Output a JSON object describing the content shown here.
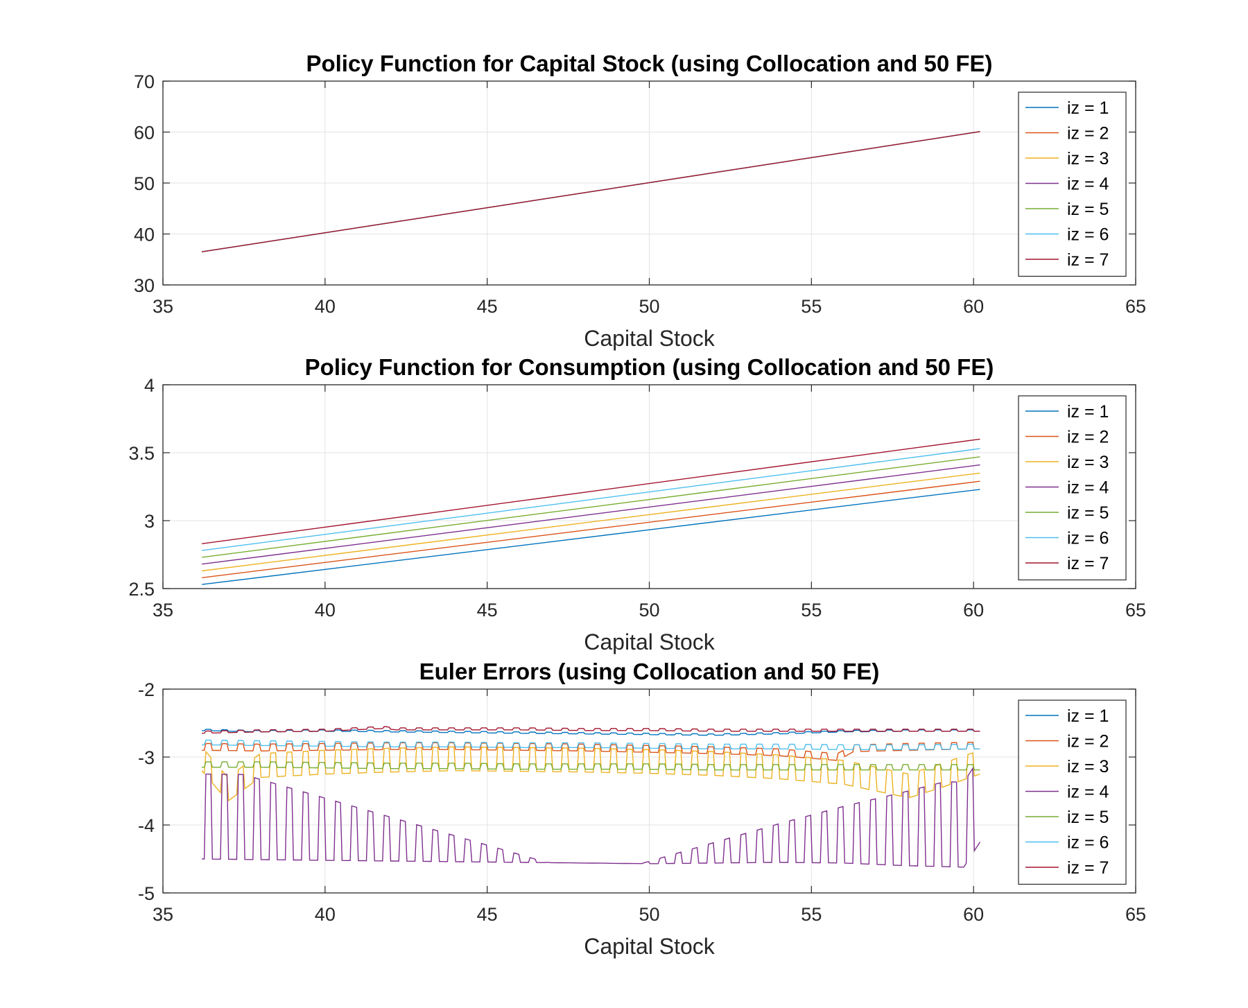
{
  "chart_data": [
    {
      "type": "line",
      "title": "Policy Function for Capital Stock (using Collocation and 50 FE)",
      "xlabel": "Capital Stock",
      "ylabel": "",
      "xlim": [
        35,
        65
      ],
      "ylim": [
        30,
        70
      ],
      "xticks": [
        35,
        40,
        45,
        50,
        55,
        60,
        65
      ],
      "yticks": [
        30,
        40,
        50,
        60,
        70
      ],
      "grid": true,
      "legend": "top-right",
      "series": [
        {
          "name": "iz = 1",
          "color": "#0072BD",
          "x": [
            36.2,
            60.2
          ],
          "y": [
            36.5,
            60.1
          ]
        },
        {
          "name": "iz = 2",
          "color": "#D95319",
          "x": [
            36.2,
            60.2
          ],
          "y": [
            36.5,
            60.1
          ]
        },
        {
          "name": "iz = 3",
          "color": "#EDB120",
          "x": [
            36.2,
            60.2
          ],
          "y": [
            36.5,
            60.1
          ]
        },
        {
          "name": "iz = 4",
          "color": "#7E2F8E",
          "x": [
            36.2,
            60.2
          ],
          "y": [
            36.5,
            60.1
          ]
        },
        {
          "name": "iz = 5",
          "color": "#77AC30",
          "x": [
            36.2,
            60.2
          ],
          "y": [
            36.5,
            60.1
          ]
        },
        {
          "name": "iz = 6",
          "color": "#4DBEEE",
          "x": [
            36.2,
            60.2
          ],
          "y": [
            36.5,
            60.1
          ]
        },
        {
          "name": "iz = 7",
          "color": "#A2142F",
          "x": [
            36.2,
            60.2
          ],
          "y": [
            36.5,
            60.1
          ]
        }
      ]
    },
    {
      "type": "line",
      "title": "Policy Function for Consumption (using Collocation and 50 FE)",
      "xlabel": "Capital Stock",
      "ylabel": "",
      "xlim": [
        35,
        65
      ],
      "ylim": [
        2.5,
        4
      ],
      "xticks": [
        35,
        40,
        45,
        50,
        55,
        60,
        65
      ],
      "yticks": [
        2.5,
        3,
        3.5,
        4
      ],
      "grid": true,
      "legend": "top-right",
      "series": [
        {
          "name": "iz = 1",
          "color": "#0072BD",
          "x": [
            36.2,
            60.2
          ],
          "y": [
            2.53,
            3.23
          ]
        },
        {
          "name": "iz = 2",
          "color": "#D95319",
          "x": [
            36.2,
            60.2
          ],
          "y": [
            2.58,
            3.29
          ]
        },
        {
          "name": "iz = 3",
          "color": "#EDB120",
          "x": [
            36.2,
            60.2
          ],
          "y": [
            2.63,
            3.35
          ]
        },
        {
          "name": "iz = 4",
          "color": "#7E2F8E",
          "x": [
            36.2,
            60.2
          ],
          "y": [
            2.68,
            3.41
          ]
        },
        {
          "name": "iz = 5",
          "color": "#77AC30",
          "x": [
            36.2,
            60.2
          ],
          "y": [
            2.73,
            3.47
          ]
        },
        {
          "name": "iz = 6",
          "color": "#4DBEEE",
          "x": [
            36.2,
            60.2
          ],
          "y": [
            2.78,
            3.53
          ]
        },
        {
          "name": "iz = 7",
          "color": "#A2142F",
          "x": [
            36.2,
            60.2
          ],
          "y": [
            2.83,
            3.6
          ]
        }
      ]
    },
    {
      "type": "line",
      "title": "Euler Errors (using Collocation and 50 FE)",
      "xlabel": "Capital Stock",
      "ylabel": "",
      "xlim": [
        35,
        65
      ],
      "ylim": [
        -5,
        -2
      ],
      "xticks": [
        35,
        40,
        45,
        50,
        55,
        60,
        65
      ],
      "yticks": [
        -5,
        -4,
        -3,
        -2
      ],
      "grid": true,
      "legend": "top-right",
      "series": [
        {
          "name": "iz = 1",
          "color": "#0072BD",
          "x": [
            36.2,
            38,
            40,
            42,
            44,
            46,
            48,
            50,
            52,
            54,
            56,
            58,
            60.2
          ],
          "y": [
            -2.61,
            -2.63,
            -2.62,
            -2.63,
            -2.64,
            -2.65,
            -2.66,
            -2.67,
            -2.68,
            -2.66,
            -2.63,
            -2.62,
            -2.62
          ]
        },
        {
          "name": "iz = 2",
          "color": "#D95319",
          "x": [
            36.2,
            38,
            40,
            42,
            44,
            46,
            48,
            50,
            52,
            54,
            55.8,
            56.3,
            58,
            60.2
          ],
          "y": [
            -2.9,
            -2.91,
            -2.9,
            -2.89,
            -2.89,
            -2.9,
            -2.91,
            -2.93,
            -2.95,
            -2.98,
            -3.05,
            -2.92,
            -2.9,
            -2.88
          ]
        },
        {
          "name": "iz = 3",
          "color": "#EDB120",
          "x": [
            36.2,
            37,
            38,
            40,
            42,
            44,
            46,
            48,
            50,
            52,
            54,
            56,
            57,
            58,
            59,
            60.2
          ],
          "y": [
            -3.2,
            -3.65,
            -3.3,
            -3.25,
            -3.22,
            -3.2,
            -3.21,
            -3.22,
            -3.24,
            -3.27,
            -3.32,
            -3.4,
            -3.5,
            -3.6,
            -3.45,
            -3.25
          ]
        },
        {
          "name": "iz = 4",
          "color": "#7E2F8E",
          "x": [
            36.2,
            40,
            42,
            44,
            46,
            48,
            50,
            52,
            54,
            56,
            58,
            59.7,
            60.2
          ],
          "y": [
            -4.5,
            -4.52,
            -4.53,
            -4.54,
            -4.55,
            -4.56,
            -4.57,
            -4.56,
            -4.55,
            -4.56,
            -4.6,
            -4.62,
            -4.25
          ]
        },
        {
          "name": "iz = 5",
          "color": "#77AC30",
          "x": [
            36.2,
            38,
            40,
            42,
            44,
            46,
            48,
            50,
            52,
            54,
            56,
            58,
            60.2
          ],
          "y": [
            -3.15,
            -3.15,
            -3.16,
            -3.17,
            -3.17,
            -3.18,
            -3.18,
            -3.18,
            -3.19,
            -3.19,
            -3.19,
            -3.19,
            -3.19
          ]
        },
        {
          "name": "iz = 6",
          "color": "#4DBEEE",
          "x": [
            36.2,
            38,
            40,
            42,
            44,
            46,
            48,
            50,
            52,
            54,
            56,
            58,
            60.2
          ],
          "y": [
            -2.82,
            -2.83,
            -2.84,
            -2.85,
            -2.85,
            -2.86,
            -2.86,
            -2.87,
            -2.88,
            -2.88,
            -2.89,
            -2.89,
            -2.88
          ]
        },
        {
          "name": "iz = 7",
          "color": "#A2142F",
          "x": [
            36.2,
            38,
            40,
            41.8,
            42.2,
            44,
            46,
            48,
            50,
            52,
            54,
            56,
            58,
            60.2
          ],
          "y": [
            -2.65,
            -2.63,
            -2.62,
            -2.58,
            -2.6,
            -2.6,
            -2.6,
            -2.61,
            -2.61,
            -2.62,
            -2.62,
            -2.62,
            -2.62,
            -2.62
          ]
        }
      ]
    }
  ]
}
